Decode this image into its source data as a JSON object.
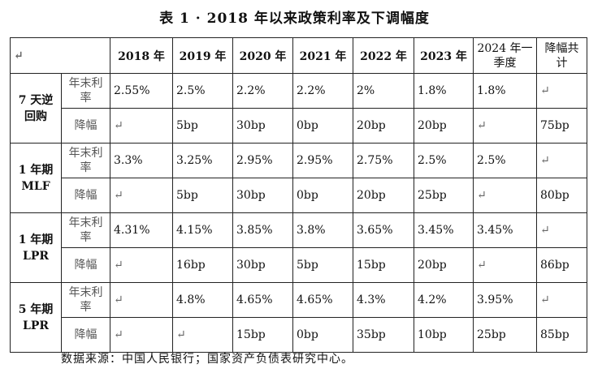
{
  "title": "表 1 · 2018 年以来政策利率及下调幅度",
  "header": {
    "corner": "↵",
    "years": [
      "2018 年",
      "2019 年",
      "2020 年",
      "2021 年",
      "2022 年",
      "2023 年"
    ],
    "q1_2024": "2024 年一季度",
    "total": "降幅共计"
  },
  "rows": [
    {
      "name": "7 天逆回购",
      "rate_label": "年末利率",
      "cut_label": "降幅",
      "rates": [
        "2.55%",
        "2.5%",
        "2.2%",
        "2.2%",
        "2%",
        "1.8%",
        "1.8%",
        "↵"
      ],
      "cuts": [
        "↵",
        "5bp",
        "30bp",
        "0bp",
        "20bp",
        "20bp",
        "↵",
        "75bp"
      ]
    },
    {
      "name": "1 年期 MLF",
      "rate_label": "年末利率",
      "cut_label": "降幅",
      "rates": [
        "3.3%",
        "3.25%",
        "2.95%",
        "2.95%",
        "2.75%",
        "2.5%",
        "2.5%",
        "↵"
      ],
      "cuts": [
        "↵",
        "5bp",
        "30bp",
        "0bp",
        "20bp",
        "25bp",
        "↵",
        "80bp"
      ]
    },
    {
      "name": "1 年期 LPR",
      "rate_label": "年末利率",
      "cut_label": "降幅",
      "rates": [
        "4.31%",
        "4.15%",
        "3.85%",
        "3.8%",
        "3.65%",
        "3.45%",
        "3.45%",
        "↵"
      ],
      "cuts": [
        "↵",
        "16bp",
        "30bp",
        "5bp",
        "15bp",
        "20bp",
        "↵",
        "86bp"
      ]
    },
    {
      "name": "5 年期 LPR",
      "rate_label": "年末利率",
      "cut_label": "降幅",
      "rates": [
        "↵",
        "4.8%",
        "4.65%",
        "4.65%",
        "4.3%",
        "4.2%",
        "3.95%",
        "↵"
      ],
      "cuts": [
        "↵",
        "↵",
        "15bp",
        "0bp",
        "35bp",
        "10bp",
        "25bp",
        "85bp"
      ]
    }
  ],
  "source": "数据来源：中国人民银行；国家资产负债表研究中心。"
}
